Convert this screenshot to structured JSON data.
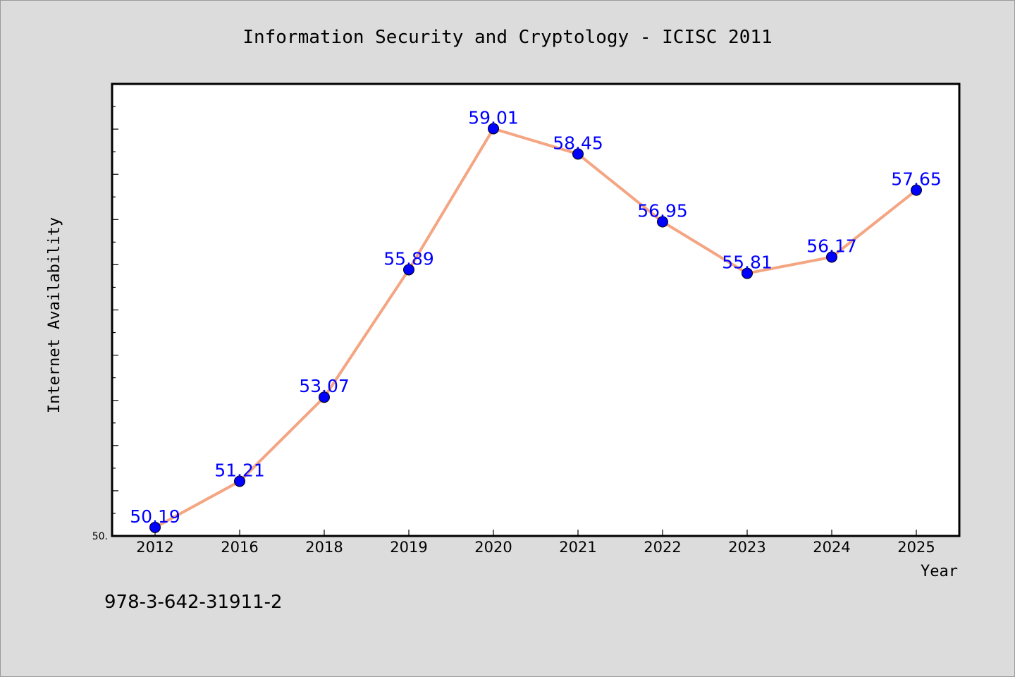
{
  "chart_data": {
    "type": "line",
    "title": "Information Security and Cryptology - ICISC 2011",
    "xlabel": "Year",
    "ylabel": "Internet Availability",
    "categories": [
      "2012",
      "2016",
      "2018",
      "2019",
      "2020",
      "2021",
      "2022",
      "2023",
      "2024",
      "2025"
    ],
    "series": [
      {
        "values": [
          50.19,
          51.21,
          53.07,
          55.89,
          59.01,
          58.45,
          56.95,
          55.81,
          56.17,
          57.65
        ],
        "data_labels": [
          "50.19",
          "51.21",
          "53.07",
          "55.89",
          "59.01",
          "58.45",
          "56.95",
          "55.81",
          "56.17",
          "57.65"
        ],
        "line_color": "#f4a582",
        "marker_color": "#0000ff",
        "label_color": "#0000ff"
      }
    ],
    "ylim": [
      50,
      60
    ],
    "y_min_label": "50.",
    "grid": false,
    "legend": "none"
  },
  "footer": {
    "isbn": "978-3-642-31911-2"
  },
  "colors": {
    "background": "#dcdcdc",
    "plot_area": "#ffffff",
    "axis": "#000000"
  }
}
